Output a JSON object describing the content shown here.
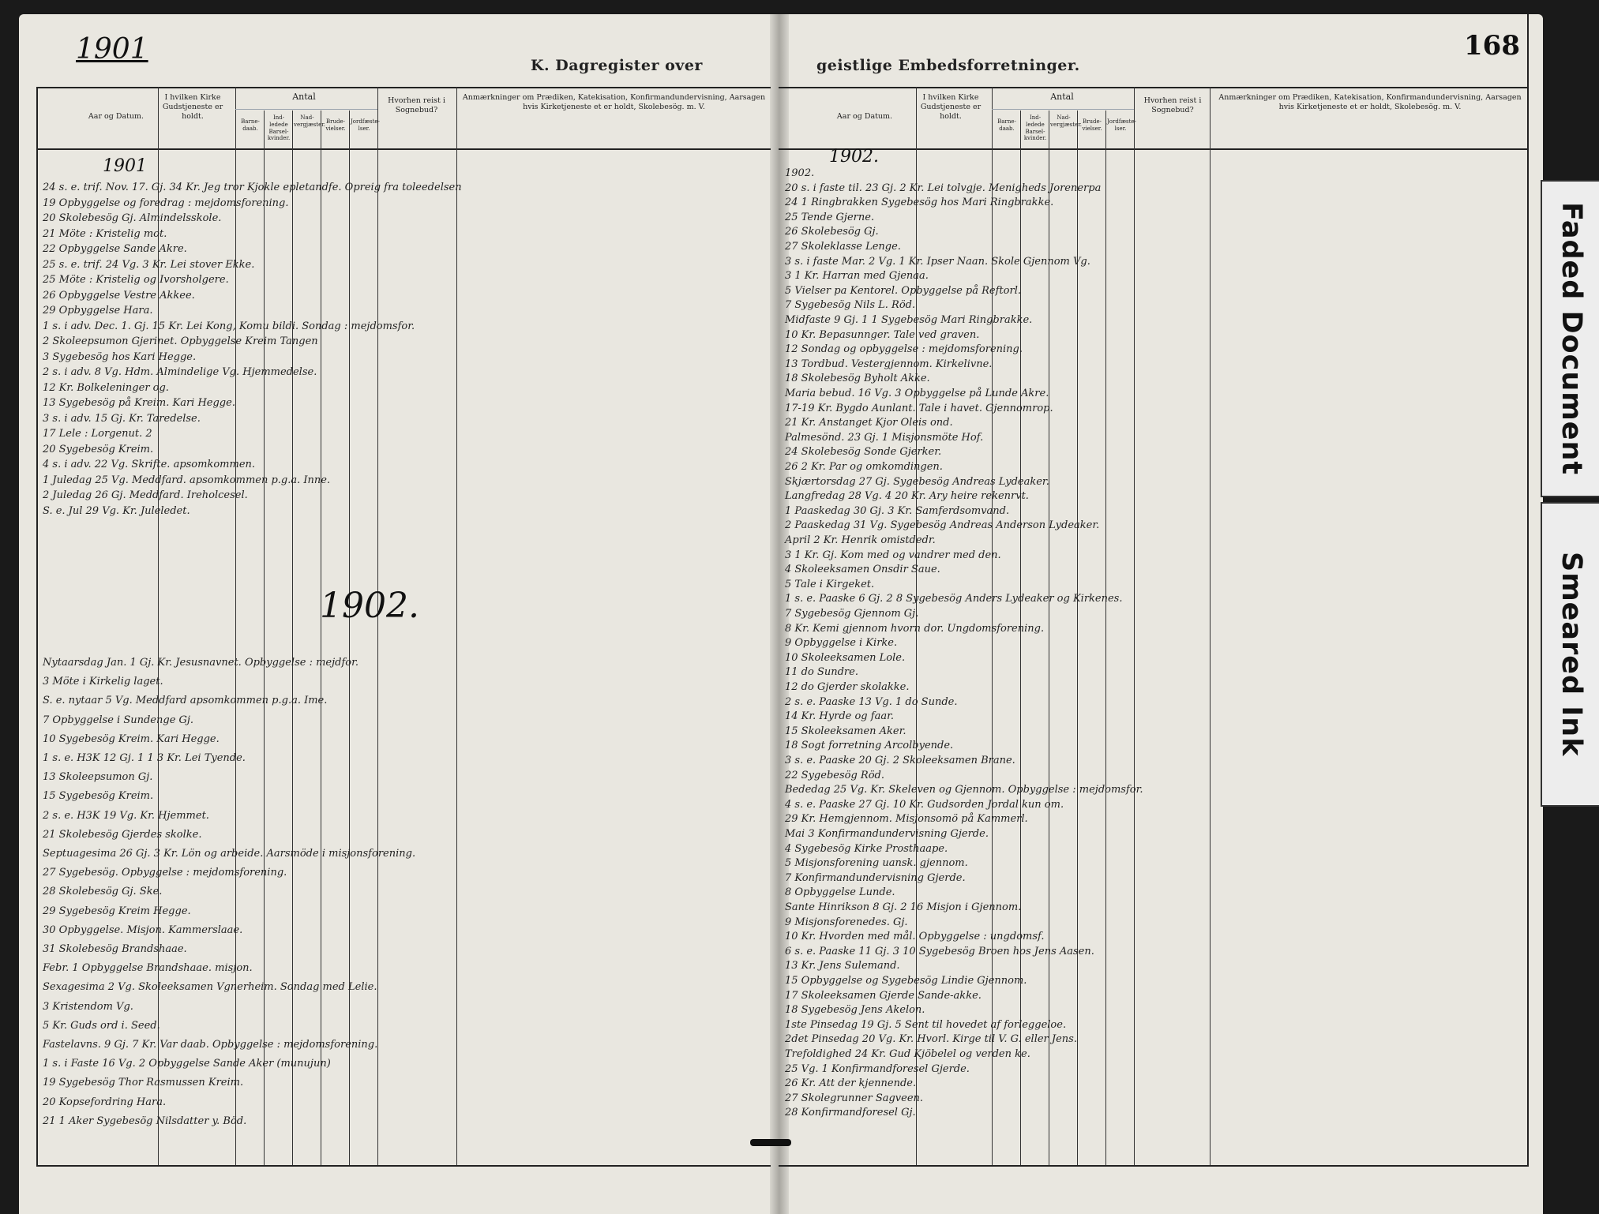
{
  "header": {
    "year_left": "1901",
    "title_left": "K.  Dagregister over",
    "title_right": "geistlige  Embedsforretninger.",
    "page_number": "168"
  },
  "columns": {
    "aar": "Aar og Datum.",
    "kirke": "I hvilken Kirke Gudstjeneste er holdt.",
    "antal": "Antal",
    "barnedaab": "Barne-daab.",
    "barselkvinder": "Ind-ledede Barsel-kvinder.",
    "nadver": "Nad-vergjæster.",
    "brudevielser": "Brude-vielser.",
    "jordfaestelser": "Jordfæste-lser.",
    "sognebud": "Hvorhen reist i Sognebud?",
    "anmerkninger": "Anmærkninger om Prædiken, Katekisation, Konfirmandundervisning, Aarsagen hvis Kirketjeneste et er holdt, Skolebesög. m. V."
  },
  "handwriting": {
    "year_1901": "1901",
    "year_1902_right": "1902.",
    "year_1902_center": "1902."
  },
  "left_entries": [
    "24 s. e. trif.  Nov. 17.   Gj.   34   Kr. Jeg tror Kjokle epletandfe. Opreig fra toleedelsen",
    "19   Opbyggelse og foredrag : mejdomsforening.",
    "20   Skolebesög Gj. Almindelsskole.",
    "21   Möte : Kristelig mot.",
    "22   Opbyggelse Sande Akre.",
    "25 s. e. trif.  24   Vg.   3   Kr. Lei stover Ekke.",
    "25   Möte : Kristelig og Ivorsholgere.",
    "26   Opbyggelse Vestre Akkee.",
    "29   Opbyggelse Hara.",
    "1 s. i adv. Dec. 1.   Gj.   15   Kr. Lei Kong, Komu bildi. Sondag : mejdomsfor.",
    "2   Skoleepsumon Gjerinet. Opbyggelse Kreim   Tangen",
    "3   Sygebesög hos Kari Hegge.",
    "2 s. i adv. 8   Vg.   Hdm. Almindelige Vg. Hjemmedelse.",
    "12   Kr. Bolkeleninger og.",
    "13   Sygebesög på Kreim. Kari Hegge.",
    "3 s. i adv. 15   Gj.   Kr. Taredelse.",
    "17   Lele : Lorgenut.   2",
    "20   Sygebesög Kreim.",
    "4 s. i adv. 22   Vg.   Skrifte. apsomkommen.",
    "1 Juledag 25   Vg.   Meddfard. apsomkommen p.g.a. Inne.",
    "2 Juledag 26   Gj.   Meddfard. Ireholcesel.",
    "S. e. Jul 29   Vg.   Kr. Juleledet."
  ],
  "left_entries_1902": [
    "Nytaarsdag Jan. 1   Gj.   Kr. Jesusnavnet. Opbyggelse : mejdfor.",
    "3   Möte i Kirkelig laget.",
    "S. e. nytaar 5   Vg.   Meddfard apsomkommen p.g.a. Ime.",
    "7   Opbyggelse i Sundenge Gj.",
    "10   Sygebesög Kreim. Kari Hegge.",
    "1 s. e. H3K 12   Gj.   1   1   3   Kr. Lei Tyende.",
    "13   Skoleepsumon Gj.",
    "15   Sygebesög Kreim.",
    "2 s. e. H3K 19   Vg.   Kr. Hjemmet.",
    "21   Skolebesög Gjerdes skolke.",
    "Septuagesima 26   Gj.   3   Kr. Lön og arbeide. Aarsmöde i misjonsforening.",
    "27   Sygebesög. Opbyggelse : mejdomsforening.",
    "28   Skolebesög Gj. Ske.",
    "29   Sygebesög Kreim Hegge.",
    "30   Opbyggelse. Misjon. Kammerslaae.",
    "31   Skolebesög Brandshaae.",
    "Febr. 1   Opbyggelse Brandshaae. misjon.",
    "Sexagesima 2   Vg.   Skoleeksamen Vgnerheim. Sondag med Lelie.",
    "3   Kristendom Vg.",
    "5   Kr. Guds ord i. Seed.",
    "Fastelavns. 9   Gj.   7   Kr. Var daab. Opbyggelse : mejdomsforening.",
    "1 s. i Faste 16   Vg.   2   Opbyggelse Sande Aker (munujun)",
    "19   Sygebesög Thor Rasmussen Kreim.",
    "20   Kopsefordring Hara.",
    "21   1   Aker   Sygebesög Nilsdatter y. Böd."
  ],
  "right_entries": [
    "1902.",
    "20 s. i faste til. 23   Gj.   2   Kr. Lei tolvgje. Menigheds Jorenerpa",
    "24   1   Ringbrakken   Sygebesög hos Mari Ringbrakke.",
    "25   Tende Gjerne.",
    "26   Skolebesög Gj.",
    "27   Skoleklasse Lenge.",
    "3 s. i faste Mar. 2   Vg.   1   Kr. Ipser Naan. Skole Gjennom Vg.",
    "3   1   Kr. Harran med Gjenaa.",
    "5   Vielser pa Kentorel. Opbyggelse på Reftorl.",
    "7   Sygebesög Nils L. Röd.",
    "Midfaste 9   Gj.   1   1   Sygebesög Mari Ringbrakke.",
    "10   Kr. Bepasunnger. Tale ved graven.",
    "12   Sondag og opbyggelse : mejdomsforening.",
    "13   Tordbud. Vestergjennom. Kirkelivne.",
    "18   Skolebesög Byholt Akke.",
    "Maria bebud. 16   Vg.   3   Opbyggelse på Lunde Akre.",
    "17-19   Kr. Bygdo Aunlant. Tale i havet. Gjennomrop.",
    "21   Kr. Anstanget Kjor Oleis ond.",
    "Palmesönd. 23   Gj.   1   Misjonsmöte Hof.",
    "24   Skolebesög Sonde Gjerker.",
    "26   2   Kr. Par og omkomdingen.",
    "Skjærtorsdag 27   Gj.   Sygebesög Andreas Lydeaker.",
    "Langfredag 28   Vg.   4   20   Kr. Ary heire rekenrvt.",
    "1 Paaskedag 30   Gj.   3   Kr. Samferdsomvand.",
    "2 Paaskedag 31   Vg.   Sygebesög Andreas Anderson Lydeaker.",
    "April 2   Kr. Henrik omistdedr.",
    "3   1   Kr. Gj. Kom med og vandrer med den.",
    "4   Skoleeksamen Onsdir Saue.",
    "5   Tale i Kirgeket.",
    "1 s. e. Paaske 6   Gj.   2   8   Sygebesög Anders Lydeaker og Kirkenes.",
    "7   Sygebesög Gjennom Gj.",
    "8   Kr. Kemi gjennom hvorn dor. Ungdomsforening.",
    "9   Opbyggelse i Kirke.",
    "10   Skoleeksamen Lole.",
    "11   do Sundre.",
    "12   do Gjerder skolakke.",
    "2 s. e. Paaske 13   Vg.   1   do Sunde.",
    "14   Kr. Hyrde og faar.",
    "15   Skoleeksamen Aker.",
    "18   Sogt forretning Arcolbyende.",
    "3 s. e. Paaske 20   Gj.   2   Skoleeksamen Brane.",
    "22   Sygebesög Röd.",
    "Bededag 25   Vg.   Kr. Skeleven og Gjennom. Opbyggelse : mejdomsfor.",
    "4 s. e. Paaske 27   Gj.   10   Kr. Gudsorden Jordal kun om.",
    "29   Kr. Hemgjennom. Misjonsomö på Kammerl.",
    "Mai 3   Konfirmandundervisning Gjerde.",
    "4   Sygebesög Kirke Prosthaape.",
    "5   Misjonsforening uansk. gjennom.",
    "7   Konfirmandundervisning Gjerde.",
    "8   Opbyggelse Lunde.",
    "Sante Hinrikson 8   Gj.   2   16   Misjon i Gjennom.",
    "9   Misjonsforenedes. Gj.",
    "10   Kr. Hvorden med mål. Opbyggelse : ungdomsf.",
    "6 s. e. Paaske 11   Gj.   3   10   Sygebesög Broen hos Jens Aasen.",
    "13   Kr. Jens Sulemand.",
    "15   Opbyggelse og Sygebesög Lindie Gjennom.",
    "17   Skoleeksamen Gjerde Sande-akke.",
    "18   Sygebesög Jens Akelon.",
    "1ste Pinsedag 19   Gj.   5   Sent til hovedet af forleggeloe.",
    "2det Pinsedag 20   Vg.   Kr. Hvorl. Kirge til V. G. eller Jens.",
    "Trefoldighed 24   Kr. Gud Kjöbelel og verden ke.",
    "25   Vg.   1   Konfirmandforesel Gjerde.",
    "26   Kr. Att der kjennende.",
    "27   Skolegrunner Sagveen.",
    "28   Konfirmandforesel Gj."
  ],
  "tabs": {
    "faded": "Faded Document",
    "smeared": "Smeared Ink"
  }
}
